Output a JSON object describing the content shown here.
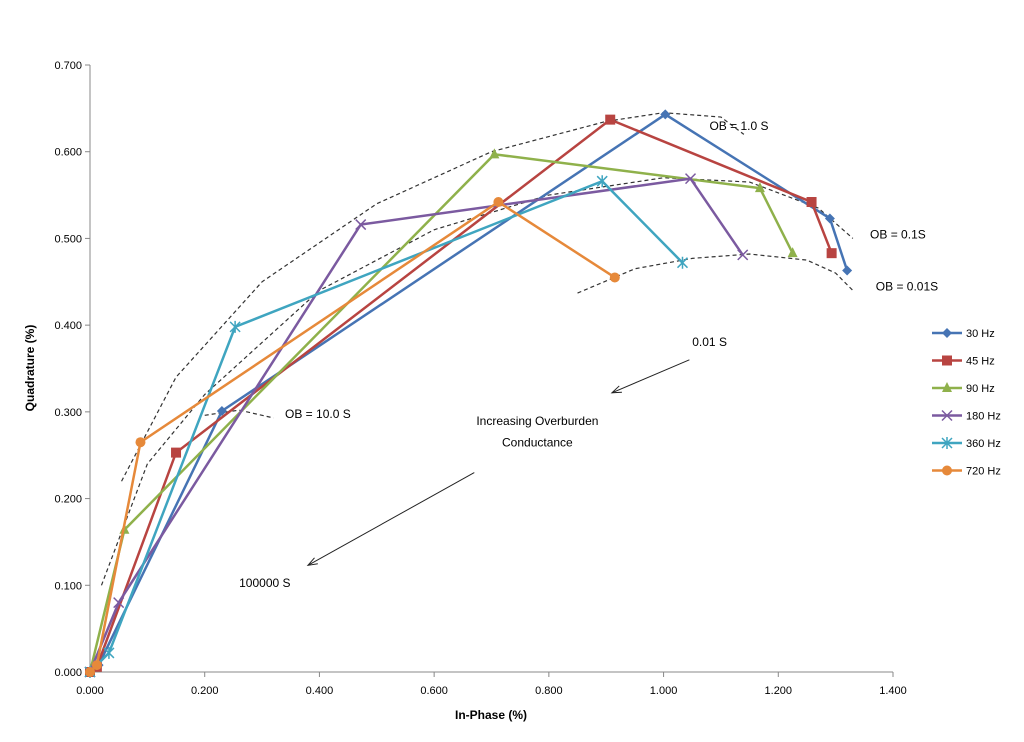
{
  "chart_data": {
    "type": "line",
    "xlabel": "In-Phase (%)",
    "ylabel": "Quadrature (%)",
    "xlim": [
      0,
      1.4
    ],
    "ylim": [
      0,
      0.7
    ],
    "xticks": [
      "0.000",
      "0.200",
      "0.400",
      "0.600",
      "0.800",
      "1.000",
      "1.200",
      "1.400"
    ],
    "yticks": [
      "0.000",
      "0.100",
      "0.200",
      "0.300",
      "0.400",
      "0.500",
      "0.600",
      "0.700"
    ],
    "grid": false,
    "legend_position": "right",
    "series": [
      {
        "name": "30 Hz",
        "color": "#4674b4",
        "marker": "diamond",
        "x": [
          0,
          0.015,
          0.23,
          1.003,
          1.29,
          1.32
        ],
        "y": [
          0,
          0.008,
          0.301,
          0.643,
          0.523,
          0.463
        ]
      },
      {
        "name": "45 Hz",
        "color": "#b84441",
        "marker": "square",
        "x": [
          0,
          0.012,
          0.15,
          0.907,
          1.258,
          1.293
        ],
        "y": [
          0,
          0.006,
          0.253,
          0.637,
          0.542,
          0.483
        ]
      },
      {
        "name": "90 Hz",
        "color": "#8fb14b",
        "marker": "triangle",
        "x": [
          0,
          0.06,
          0.705,
          1.168,
          1.225
        ],
        "y": [
          0,
          0.164,
          0.597,
          0.558,
          0.483
        ]
      },
      {
        "name": "180 Hz",
        "color": "#7b5aa0",
        "marker": "x",
        "x": [
          0,
          0.05,
          0.472,
          1.047,
          1.138
        ],
        "y": [
          0,
          0.08,
          0.516,
          0.569,
          0.481
        ]
      },
      {
        "name": "360 Hz",
        "color": "#3fa5c0",
        "marker": "star",
        "x": [
          0,
          0.033,
          0.253,
          0.893,
          1.033
        ],
        "y": [
          0,
          0.022,
          0.398,
          0.566,
          0.472
        ]
      },
      {
        "name": "720 Hz",
        "color": "#e6893a",
        "marker": "circle",
        "x": [
          0,
          0.012,
          0.088,
          0.712,
          0.915
        ],
        "y": [
          0,
          0.008,
          0.265,
          0.542,
          0.455
        ]
      }
    ],
    "annotations": [
      {
        "text": "OB = 1.0 S",
        "x": 1.08,
        "y": 0.625
      },
      {
        "text": "OB = 0.1S",
        "x": 1.36,
        "y": 0.5
      },
      {
        "text": "OB = 0.01S",
        "x": 1.37,
        "y": 0.44
      },
      {
        "text": "OB = 10.0 S",
        "x": 0.34,
        "y": 0.293
      },
      {
        "text": "0.01 S",
        "x": 1.05,
        "y": 0.376
      },
      {
        "text": "Increasing Overburden",
        "x": 0.78,
        "y": 0.285
      },
      {
        "text": "Conductance",
        "x": 0.78,
        "y": 0.26
      },
      {
        "text": "100000 S",
        "x": 0.26,
        "y": 0.098
      }
    ],
    "curves": [
      {
        "x": [
          0.055,
          0.15,
          0.3,
          0.5,
          0.7,
          0.9,
          1.0,
          1.1,
          1.14
        ],
        "y": [
          0.22,
          0.34,
          0.45,
          0.54,
          0.6,
          0.635,
          0.645,
          0.64,
          0.62
        ]
      },
      {
        "x": [
          0.02,
          0.1,
          0.2,
          0.4,
          0.6,
          0.8,
          1.0,
          1.15,
          1.27,
          1.33
        ],
        "y": [
          0.1,
          0.24,
          0.32,
          0.44,
          0.51,
          0.55,
          0.57,
          0.565,
          0.535,
          0.5
        ]
      },
      {
        "x": [
          0.2,
          0.26,
          0.32
        ],
        "y": [
          0.296,
          0.302,
          0.293
        ]
      },
      {
        "x": [
          0.85,
          0.95,
          1.05,
          1.15,
          1.25,
          1.3,
          1.33
        ],
        "y": [
          0.437,
          0.465,
          0.477,
          0.482,
          0.475,
          0.46,
          0.44
        ]
      }
    ],
    "arrows": [
      {
        "from": [
          1.045,
          0.36
        ],
        "to": [
          0.91,
          0.322
        ]
      },
      {
        "from": [
          0.67,
          0.23
        ],
        "to": [
          0.38,
          0.123
        ]
      }
    ]
  }
}
